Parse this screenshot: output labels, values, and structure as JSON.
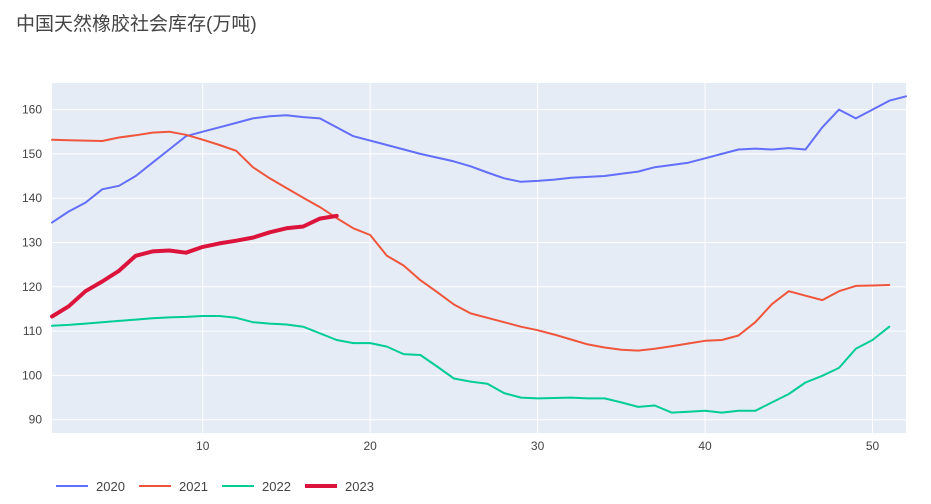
{
  "chart_data": {
    "type": "line",
    "title": "中国天然橡胶社会库存(万吨)",
    "xlabel": "",
    "ylabel": "",
    "xlim": [
      1,
      52
    ],
    "ylim": [
      87,
      166
    ],
    "x_ticks": [
      10,
      20,
      30,
      40,
      50
    ],
    "y_ticks": [
      90,
      100,
      110,
      120,
      130,
      140,
      150,
      160
    ],
    "grid": true,
    "legend_position": "bottom-left",
    "plot_background": "#e5ecf6",
    "series": [
      {
        "name": "2020",
        "color": "#636efa",
        "line_width": 2,
        "x": [
          1,
          2,
          3,
          4,
          5,
          6,
          7,
          8,
          9,
          10,
          11,
          12,
          13,
          14,
          15,
          16,
          17,
          19,
          21,
          23,
          25,
          26,
          27,
          28,
          29,
          30,
          31,
          32,
          33,
          34,
          35,
          36,
          37,
          38,
          39,
          40,
          41,
          42,
          43,
          44,
          45,
          46,
          47,
          48,
          49,
          50,
          51,
          52
        ],
        "values": [
          134.5,
          137,
          139,
          142,
          142.8,
          145,
          148,
          151,
          154,
          155,
          156,
          157,
          158,
          158.5,
          158.7,
          158.3,
          158,
          154,
          152,
          150,
          148.3,
          147.2,
          145.8,
          144.5,
          143.7,
          143.9,
          144.2,
          144.6,
          144.8,
          145,
          145.5,
          146,
          147,
          147.5,
          148,
          149,
          150,
          151,
          151.2,
          151,
          151.3,
          151,
          156,
          160,
          158,
          160,
          162,
          163
        ]
      },
      {
        "name": "2021",
        "color": "#ef553b",
        "line_width": 2,
        "x": [
          1,
          2,
          3,
          4,
          5,
          6,
          7,
          8,
          9,
          10,
          11,
          12,
          13,
          14,
          15,
          16,
          17,
          18,
          19,
          20,
          21,
          22,
          23,
          24,
          25,
          26,
          27,
          28,
          29,
          30,
          31,
          32,
          33,
          34,
          35,
          36,
          37,
          38,
          39,
          40,
          41,
          42,
          43,
          44,
          45,
          46,
          47,
          48,
          49,
          50,
          51
        ],
        "values": [
          153.2,
          153.1,
          153,
          152.9,
          153.7,
          154.2,
          154.8,
          155,
          154.3,
          153.2,
          152,
          150.7,
          147,
          144.5,
          142.3,
          140.1,
          138,
          135.5,
          133.2,
          131.7,
          127,
          124.8,
          121.5,
          118.8,
          116,
          114,
          113,
          112,
          111,
          110.2,
          109.2,
          108.1,
          107,
          106.3,
          105.8,
          105.6,
          106,
          106.6,
          107.2,
          107.8,
          108,
          109,
          112,
          116.1,
          119,
          118,
          117,
          119,
          120.2,
          120.3,
          120.4
        ]
      },
      {
        "name": "2022",
        "color": "#00cc96",
        "line_width": 2,
        "x": [
          1,
          2,
          3,
          4,
          5,
          6,
          7,
          8,
          9,
          10,
          11,
          12,
          13,
          14,
          15,
          16,
          17,
          18,
          19,
          20,
          21,
          22,
          23,
          24,
          25,
          26,
          27,
          28,
          29,
          30,
          31,
          32,
          33,
          34,
          35,
          36,
          37,
          38,
          39,
          40,
          41,
          42,
          43,
          44,
          45,
          46,
          47,
          48,
          49,
          50,
          51
        ],
        "values": [
          111.2,
          111.4,
          111.7,
          112,
          112.3,
          112.6,
          112.9,
          113.1,
          113.2,
          113.4,
          113.4,
          113,
          112,
          111.7,
          111.5,
          111,
          109.5,
          108,
          107.3,
          107.3,
          106.5,
          104.8,
          104.6,
          102,
          99.3,
          98.6,
          98.1,
          96,
          95,
          94.8,
          94.9,
          95,
          94.8,
          94.8,
          93.9,
          92.9,
          93.2,
          91.6,
          91.8,
          92,
          91.6,
          92,
          92,
          93.9,
          95.8,
          98.4,
          99.9,
          101.7,
          106,
          108,
          111
        ]
      },
      {
        "name": "2023",
        "color": "#dc143c",
        "line_width": 4,
        "x": [
          1,
          2,
          3,
          4,
          5,
          6,
          7,
          8,
          9,
          10,
          11,
          12,
          13,
          14,
          15,
          16,
          17,
          18
        ],
        "values": [
          113.3,
          115.6,
          119,
          121.2,
          123.6,
          127,
          128,
          128.2,
          127.7,
          129,
          129.8,
          130.4,
          131.1,
          132.3,
          133.2,
          133.6,
          135.4,
          136
        ]
      }
    ]
  }
}
